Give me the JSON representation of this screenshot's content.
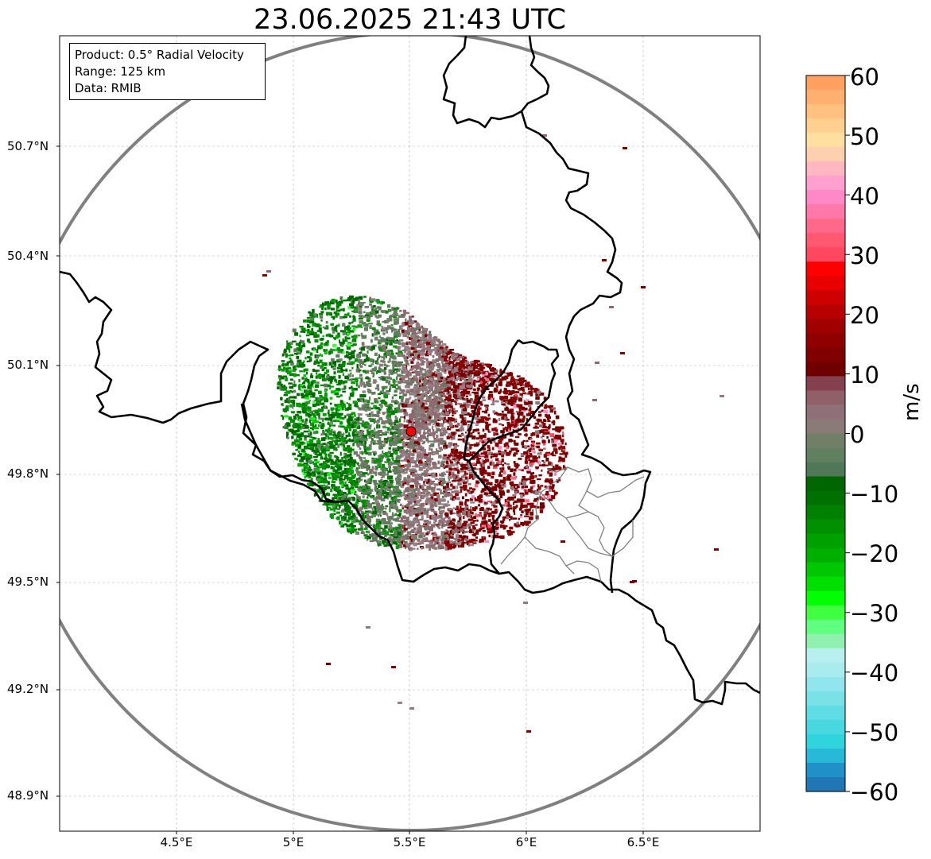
{
  "title": "23.06.2025 21:43 UTC",
  "info": {
    "product": "Product: 0.5° Radial Velocity",
    "range": "Range: 125 km",
    "source": "Data: RMIB"
  },
  "axes": {
    "y_ticks": [
      "50.7°N",
      "50.4°N",
      "50.1°N",
      "49.8°N",
      "49.5°N",
      "49.2°N",
      "48.9°N"
    ],
    "x_ticks": [
      "4.5°E",
      "5°E",
      "5.5°E",
      "6°E",
      "6.5°E"
    ]
  },
  "colorbar": {
    "unit": "m/s",
    "ticks": [
      "60",
      "50",
      "40",
      "30",
      "20",
      "10",
      "0",
      "−10",
      "−20",
      "−30",
      "−40",
      "−50",
      "−60"
    ],
    "colors": [
      "#ffa060",
      "#ffb070",
      "#ffc080",
      "#ffd090",
      "#ffe0a0",
      "#ffd0b0",
      "#ffb8c0",
      "#ffa0d0",
      "#ff88c8",
      "#ff78a8",
      "#ff6888",
      "#ff5870",
      "#ff4860",
      "#ff0000",
      "#e80000",
      "#d00000",
      "#b80000",
      "#a00000",
      "#900000",
      "#800000",
      "#700000",
      "#854050",
      "#906068",
      "#907078",
      "#8a7a78",
      "#708068",
      "#608060",
      "#507858",
      "#006600",
      "#007000",
      "#008000",
      "#009000",
      "#00a000",
      "#00b000",
      "#00c800",
      "#00e000",
      "#00ff00",
      "#40ff40",
      "#60ff80",
      "#90f0b0",
      "#b8f0f0",
      "#a8ecf0",
      "#90e6ec",
      "#78e2e8",
      "#60dce4",
      "#48d8e0",
      "#30d4dc",
      "#28b8d8",
      "#2090c8",
      "#1f77b4"
    ],
    "range": [
      -60,
      60
    ]
  },
  "map": {
    "radar_site": {
      "lon": 5.5,
      "lat": 49.914,
      "color": "#ff0000"
    },
    "extent": {
      "lon": [
        4.0,
        7.0
      ],
      "lat": [
        48.8,
        51.0
      ]
    },
    "range_ring_km": 125,
    "grid": true,
    "colors": {
      "approaching": "#008000",
      "receding": "#800000",
      "near_zero": "#8a7a78",
      "border": "#000000",
      "ring": "#808080"
    }
  }
}
